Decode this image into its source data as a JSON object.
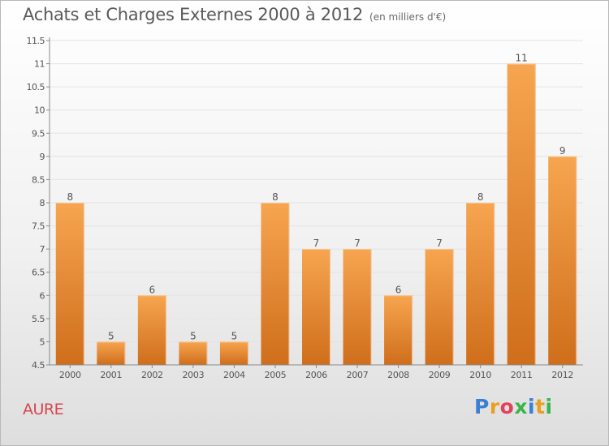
{
  "header": {
    "title": "Achats et Charges Externes 2000 à 2012",
    "unit": "(en milliers d'€)"
  },
  "footer": {
    "commune": "AURE",
    "logo_text": "Proxiti",
    "logo_colors": [
      "#3a7fd5",
      "#e8a020",
      "#e2435a",
      "#3ab54a",
      "#3a7fd5",
      "#e8a020",
      "#3ab54a"
    ]
  },
  "colors": {
    "bar_top": "#f7a550",
    "bar_bottom": "#cf6e1b",
    "grid": "#e3e3e3",
    "axis": "#8a8a8a",
    "text": "#555555",
    "commune": "#d8454e"
  },
  "chart_data": {
    "type": "bar",
    "title": "Achats et Charges Externes 2000 à 2012",
    "subtitle": "(en milliers d'€)",
    "categories": [
      "2000",
      "2001",
      "2002",
      "2003",
      "2004",
      "2005",
      "2006",
      "2007",
      "2008",
      "2009",
      "2010",
      "2011",
      "2012"
    ],
    "values": [
      8,
      5,
      6,
      5,
      5,
      8,
      7,
      7,
      6,
      7,
      8,
      11,
      9
    ],
    "data_labels": [
      "8",
      "5",
      "6",
      "5",
      "5",
      "8",
      "7",
      "7",
      "6",
      "7",
      "8",
      "11",
      "9"
    ],
    "ylim": [
      4.5,
      11.5
    ],
    "yticks": [
      4.5,
      5,
      5.5,
      6,
      6.5,
      7,
      7.5,
      8,
      8.5,
      9,
      9.5,
      10,
      10.5,
      11,
      11.5
    ],
    "ytick_labels": [
      "4.5",
      "5",
      "5.5",
      "6",
      "6.5",
      "7",
      "7.5",
      "8",
      "8.5",
      "9",
      "9.5",
      "10",
      "10.5",
      "11",
      "11.5"
    ],
    "xlabel": "",
    "ylabel": "",
    "grid": true,
    "legend": "none"
  }
}
